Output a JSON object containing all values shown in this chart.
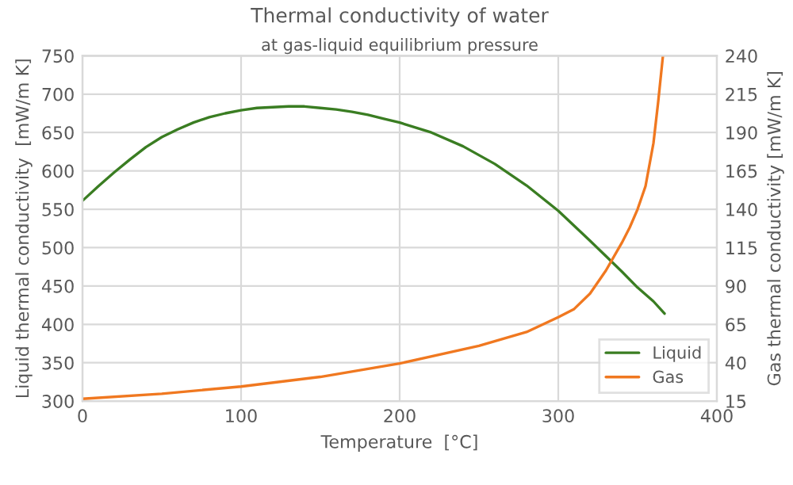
{
  "chart_data": {
    "type": "line",
    "title": "Thermal conductivity of water",
    "subtitle": "at gas-liquid equilibrium pressure",
    "xlabel": "Temperature  [°C]",
    "ylabel": "Liquid thermal conductivity  [mW/m K]",
    "y2label": "Gas thermal conductivity [mW/m K]",
    "xlim": [
      0,
      400
    ],
    "xticks": [
      0,
      100,
      200,
      300,
      400
    ],
    "ylim": [
      300,
      750
    ],
    "yticks": [
      300,
      350,
      400,
      450,
      500,
      550,
      600,
      650,
      700,
      750
    ],
    "y2lim": [
      15,
      240
    ],
    "y2ticks": [
      15,
      40,
      65,
      90,
      115,
      140,
      165,
      190,
      215,
      240
    ],
    "grid": true,
    "legend": "bottom right",
    "series": [
      {
        "name": "Liquid",
        "color": "#3a7d22",
        "x": [
          0,
          10,
          20,
          30,
          40,
          50,
          60,
          70,
          80,
          90,
          100,
          110,
          120,
          130,
          140,
          150,
          160,
          170,
          180,
          190,
          200,
          220,
          240,
          260,
          280,
          300,
          320,
          340,
          350,
          360,
          367
        ],
        "values": [
          561,
          580,
          598,
          615,
          631,
          644,
          654,
          663,
          670,
          675,
          679,
          682,
          683,
          684,
          684,
          682,
          680,
          677,
          673,
          668,
          663,
          650,
          632,
          609,
          581,
          548,
          509,
          469,
          448,
          430,
          414
        ]
      },
      {
        "name": "Gas",
        "color": "#f07820",
        "axis": "y2",
        "x": [
          0,
          50,
          100,
          150,
          200,
          250,
          280,
          300,
          310,
          320,
          330,
          340,
          345,
          350,
          355,
          360,
          363,
          366
        ],
        "values": [
          16.5,
          19.8,
          24.5,
          30.8,
          39.5,
          51,
          60,
          69.7,
          75,
          85,
          100,
          118,
          128,
          140,
          155,
          183,
          210,
          240
        ]
      }
    ]
  }
}
